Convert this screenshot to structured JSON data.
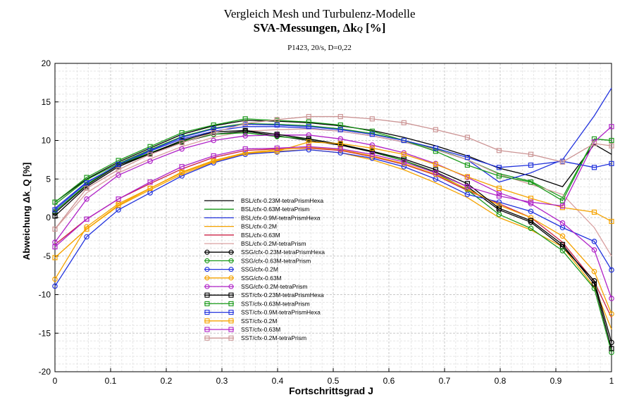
{
  "chart_data": {
    "type": "line",
    "title_line1": "Vergleich Mesh und Turbulenz-Modelle",
    "title_line2_main": "SVA-Messungen, Δk",
    "title_line2_sub": "Q",
    "title_line2_unit": " [%]",
    "subtitle": "P1423, 20/s, D=0,22",
    "xlabel": "Fortschrittsgrad J",
    "ylabel": "Abweichung Δk_Q [%]",
    "xlim": [
      0,
      1
    ],
    "ylim": [
      -20,
      20
    ],
    "x_ticks": [
      "0",
      "0.1",
      "0.2",
      "0.3",
      "0.4",
      "0.5",
      "0.6",
      "0.7",
      "0.8",
      "0.9",
      "1"
    ],
    "y_ticks": [
      "20",
      "15",
      "10",
      "5",
      "0",
      "-5",
      "-10",
      "-15",
      "-20"
    ],
    "grid": true,
    "legend_position": "center-left",
    "x": [
      0,
      0.057,
      0.114,
      0.171,
      0.228,
      0.285,
      0.342,
      0.399,
      0.456,
      0.513,
      0.57,
      0.627,
      0.684,
      0.741,
      0.798,
      0.855,
      0.912,
      0.969,
      1.0
    ],
    "series": [
      {
        "name": "BSL/cfx-0.23M-tetraPrismHexa",
        "color": "#000000",
        "marker": "none",
        "values": [
          2.0,
          5.0,
          7.2,
          9.0,
          10.8,
          11.9,
          12.6,
          12.5,
          12.3,
          11.9,
          11.3,
          10.4,
          9.3,
          8.0,
          6.4,
          5.4,
          4.0,
          9.5,
          8.2
        ]
      },
      {
        "name": "BSL/cfx-0.63M-tetraPrism",
        "color": "#1a9a1a",
        "marker": "none",
        "values": [
          1.7,
          4.9,
          7.0,
          8.8,
          10.5,
          11.6,
          12.2,
          12.1,
          11.9,
          11.5,
          10.9,
          10.0,
          8.9,
          7.5,
          5.7,
          4.7,
          2.6,
          10.2,
          10.0
        ]
      },
      {
        "name": "BSL/cfx-0.9M-tetraPrismHexa",
        "color": "#2233dd",
        "marker": "none",
        "values": [
          1.2,
          4.6,
          6.8,
          8.6,
          10.2,
          11.2,
          11.8,
          11.8,
          11.6,
          11.2,
          10.6,
          9.8,
          8.8,
          7.5,
          4.6,
          5.8,
          7.5,
          13.2,
          16.8
        ]
      },
      {
        "name": "BSL/cfx-0.2M",
        "color": "#f5a300",
        "marker": "none",
        "values": [
          -5.2,
          -1.5,
          1.5,
          3.6,
          5.6,
          7.2,
          8.3,
          8.6,
          8.8,
          8.4,
          7.5,
          6.2,
          4.5,
          2.6,
          0.0,
          -1.6,
          -3.8,
          -9.0,
          -14.5
        ]
      },
      {
        "name": "BSL/cfx-0.63M",
        "color": "#cc2244",
        "marker": "none",
        "values": [
          -3.5,
          -0.2,
          2.4,
          4.4,
          6.3,
          7.8,
          8.7,
          8.9,
          9.0,
          8.7,
          7.9,
          6.9,
          5.5,
          3.5,
          1.8,
          0.0,
          -3.2,
          -8.3,
          -13.0
        ]
      },
      {
        "name": "BSL/cfx-0.2M-tetraPrism",
        "color": "#d9a0a0",
        "marker": "none",
        "values": [
          -1.5,
          3.2,
          5.8,
          7.6,
          9.2,
          10.4,
          11.2,
          11.4,
          11.5,
          11.2,
          10.6,
          9.8,
          8.8,
          7.5,
          5.6,
          4.3,
          3.0,
          -1.3,
          -5.0
        ]
      },
      {
        "name": "SSG/cfx-0.23M-tetraPrismHexa",
        "color": "#000000",
        "marker": "circle",
        "values": [
          0.6,
          4.2,
          6.8,
          8.3,
          9.8,
          10.8,
          11.2,
          10.6,
          10.0,
          9.4,
          8.5,
          7.4,
          5.9,
          4.0,
          1.0,
          -0.6,
          -3.8,
          -8.2,
          -16.2
        ]
      },
      {
        "name": "SSG/cfx-0.63M-tetraPrism",
        "color": "#1a9a1a",
        "marker": "circle",
        "values": [
          0.8,
          4.3,
          6.9,
          8.4,
          9.9,
          10.8,
          11.0,
          10.5,
          10.2,
          9.5,
          8.6,
          7.4,
          5.8,
          3.6,
          0.4,
          -1.4,
          -4.3,
          -9.2,
          -17.5
        ]
      },
      {
        "name": "SSG/cfx-0.2M",
        "color": "#2233dd",
        "marker": "circle",
        "values": [
          -8.9,
          -2.5,
          1.0,
          3.2,
          5.4,
          7.1,
          8.2,
          8.5,
          8.8,
          8.4,
          7.7,
          6.6,
          5.0,
          3.0,
          2.0,
          0.8,
          -1.3,
          -3.1,
          -6.8
        ]
      },
      {
        "name": "SSG/cfx-0.63M",
        "color": "#f5a300",
        "marker": "circle",
        "values": [
          -8.0,
          -1.2,
          1.8,
          3.8,
          5.8,
          7.3,
          8.4,
          8.8,
          9.1,
          8.8,
          8.0,
          7.0,
          5.6,
          3.7,
          1.6,
          0.0,
          -2.4,
          -7.0,
          -12.5
        ]
      },
      {
        "name": "SSG/cfx-0.2M-tetraPrism",
        "color": "#b023c8",
        "marker": "circle",
        "values": [
          -3.2,
          2.4,
          5.5,
          7.3,
          8.9,
          10.0,
          10.6,
          10.7,
          10.7,
          10.2,
          9.4,
          8.4,
          7.0,
          5.2,
          3.2,
          1.8,
          -0.7,
          -4.2,
          -10.5
        ]
      },
      {
        "name": "SST/cfx-0.23M-tetraPrismHexa",
        "color": "#000000",
        "marker": "square",
        "values": [
          0.2,
          4.0,
          6.6,
          8.3,
          10.0,
          11.1,
          11.3,
          10.8,
          10.2,
          9.5,
          8.6,
          7.6,
          6.2,
          4.4,
          1.2,
          -0.4,
          -3.5,
          -8.6,
          -17.0
        ]
      },
      {
        "name": "SST/cfx-0.63M-tetraPrism",
        "color": "#1a9a1a",
        "marker": "square",
        "values": [
          2.0,
          5.2,
          7.4,
          9.2,
          11.0,
          12.0,
          12.8,
          12.6,
          12.4,
          12.0,
          11.2,
          10.0,
          8.6,
          6.8,
          5.4,
          4.6,
          2.2,
          10.2,
          10.0
        ]
      },
      {
        "name": "SST/cfx-0.9M-tetraPrismHexa",
        "color": "#2233dd",
        "marker": "square",
        "values": [
          1.0,
          4.5,
          6.9,
          8.7,
          10.4,
          11.5,
          12.1,
          12.0,
          11.8,
          11.4,
          10.8,
          10.0,
          9.0,
          7.8,
          6.5,
          6.8,
          7.3,
          6.5,
          7.0
        ]
      },
      {
        "name": "SST/cfx-0.2M",
        "color": "#f5a300",
        "marker": "square",
        "values": [
          -5.2,
          -1.5,
          1.6,
          3.8,
          5.9,
          7.4,
          8.4,
          8.6,
          9.8,
          9.6,
          9.0,
          8.2,
          6.9,
          5.3,
          3.8,
          2.5,
          1.3,
          0.7,
          -0.5
        ]
      },
      {
        "name": "SST/cfx-0.63M",
        "color": "#b023c8",
        "marker": "square",
        "values": [
          -3.8,
          -0.2,
          2.4,
          4.6,
          6.6,
          8.0,
          8.9,
          9.0,
          9.2,
          8.9,
          8.2,
          7.2,
          5.8,
          4.0,
          2.8,
          2.0,
          1.5,
          9.8,
          11.8
        ]
      },
      {
        "name": "SST/cfx-0.2M-tetraPrism",
        "color": "#cc9595",
        "marker": "square",
        "values": [
          -1.5,
          3.8,
          6.2,
          8.2,
          9.7,
          11.0,
          12.2,
          12.7,
          13.1,
          13.1,
          12.8,
          12.3,
          11.4,
          10.4,
          8.7,
          8.2,
          7.2,
          9.6,
          9.3
        ]
      }
    ]
  }
}
